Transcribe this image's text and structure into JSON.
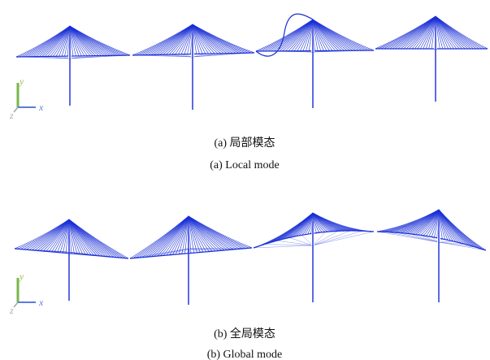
{
  "panels": [
    {
      "axes": {
        "y": "y",
        "x": "x",
        "z": "z"
      },
      "caption_zh": "(a) 局部模态",
      "caption_en": "(a) Local mode"
    },
    {
      "axes": {
        "y": "y",
        "x": "x",
        "z": "z"
      },
      "caption_zh": "(b) 全局模态",
      "caption_en": "(b) Global mode"
    }
  ]
}
